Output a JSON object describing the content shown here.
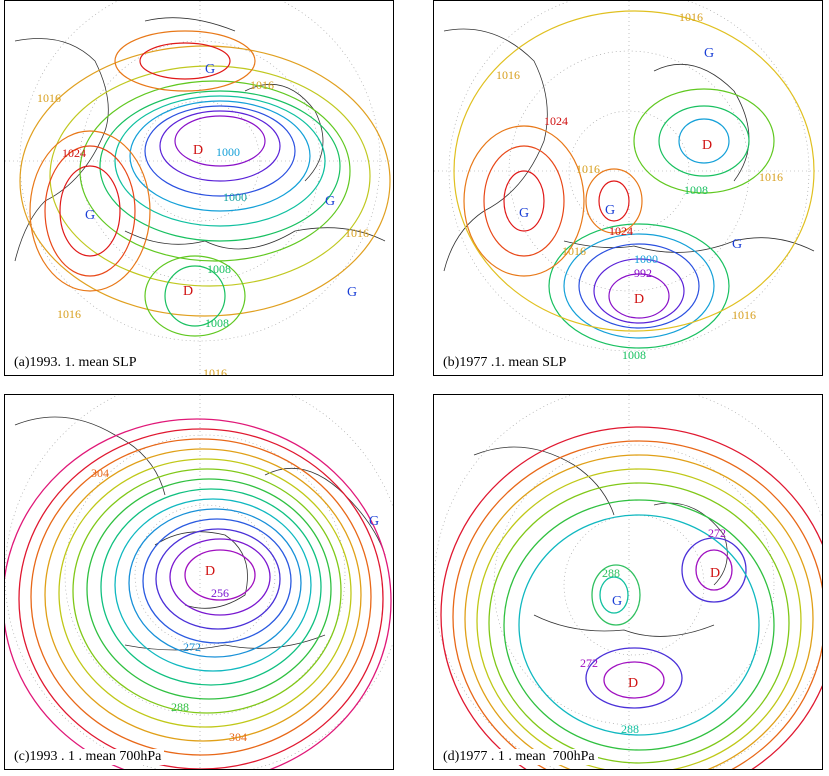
{
  "panels": [
    {
      "id": "a",
      "caption": "(a)1993. 1. mean SLP",
      "centers": [
        {
          "type": "G",
          "color": "#1a3fd6"
        },
        {
          "type": "G",
          "color": "#1a3fd6"
        },
        {
          "type": "D",
          "color": "#d01010"
        },
        {
          "type": "G",
          "color": "#1a3fd6"
        },
        {
          "type": "D",
          "color": "#d01010"
        },
        {
          "type": "G",
          "color": "#1a3fd6"
        }
      ],
      "labels": [
        "1016",
        "1024",
        "1016",
        "1000",
        "1000",
        "1016",
        "1008",
        "1016",
        "1008",
        "1016"
      ]
    },
    {
      "id": "b",
      "caption": "(b)1977 .1. mean SLP",
      "centers": [
        {
          "type": "G",
          "color": "#1a3fd6"
        },
        {
          "type": "D",
          "color": "#d01010"
        },
        {
          "type": "G",
          "color": "#1a3fd6"
        },
        {
          "type": "G",
          "color": "#1a3fd6"
        },
        {
          "type": "G",
          "color": "#1a3fd6"
        },
        {
          "type": "D",
          "color": "#d01010"
        }
      ],
      "labels": [
        "1016",
        "1016",
        "1024",
        "1016",
        "1016",
        "1008",
        "1024",
        "1016",
        "1000",
        "992",
        "1008",
        "1016"
      ]
    },
    {
      "id": "c",
      "caption": "(c)1993 . 1 . mean 700hPa",
      "centers": [
        {
          "type": "D",
          "color": "#d01010"
        },
        {
          "type": "G",
          "color": "#1a3fd6"
        }
      ],
      "labels": [
        "304",
        "256",
        "272",
        "288",
        "304"
      ]
    },
    {
      "id": "d",
      "caption": "(d)1977 . 1 . mean  700hPa",
      "centers": [
        {
          "type": "G",
          "color": "#1a3fd6"
        },
        {
          "type": "D",
          "color": "#d01010"
        },
        {
          "type": "D",
          "color": "#d01010"
        }
      ],
      "labels": [
        "288",
        "272",
        "272",
        "288"
      ]
    }
  ]
}
